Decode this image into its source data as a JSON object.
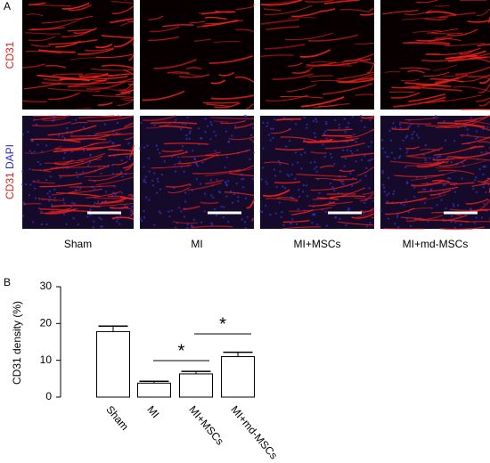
{
  "panel_a": {
    "label": "A",
    "row_labels": [
      [
        "CD31"
      ],
      [
        "CD31",
        "DAPI"
      ]
    ],
    "column_labels": [
      "Sham",
      "MI",
      "MI+MSCs",
      "MI+md-MSCs"
    ]
  },
  "chart_data": {
    "type": "bar",
    "panel_label": "B",
    "ylabel": "CD31 density (%)",
    "categories": [
      "Sham",
      "MI",
      "MI+MSCs",
      "MI+md-MSCs"
    ],
    "values": [
      17.8,
      3.8,
      6.3,
      11.0
    ],
    "errors": [
      1.5,
      0.5,
      0.7,
      1.2
    ],
    "color": "#ffffff",
    "ylim": [
      0,
      30
    ],
    "yticks": [
      0,
      10,
      20,
      30
    ],
    "annotations": [
      "*",
      "*"
    ]
  }
}
